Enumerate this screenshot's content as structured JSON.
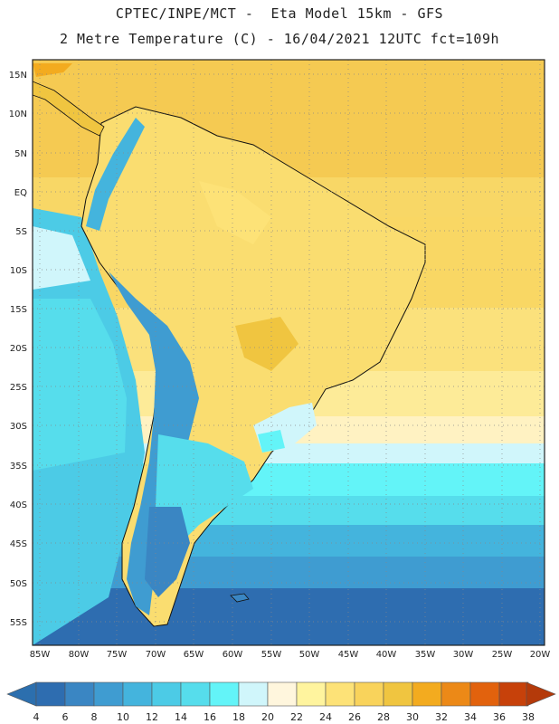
{
  "header": {
    "line1": "CPTEC/INPE/MCT -  Eta Model 15km - GFS",
    "line2": "2 Metre Temperature (C) - 16/04/2021 12UTC fct=109h"
  },
  "axes": {
    "lat_labels": [
      "15N",
      "10N",
      "5N",
      "EQ",
      "5S",
      "10S",
      "15S",
      "20S",
      "25S",
      "30S",
      "35S",
      "40S",
      "45S",
      "50S",
      "55S"
    ],
    "lon_labels": [
      "85W",
      "80W",
      "75W",
      "70W",
      "65W",
      "60W",
      "55W",
      "50W",
      "45W",
      "40W",
      "35W",
      "30W",
      "25W",
      "20W"
    ]
  },
  "colorbar": {
    "labels": [
      "4",
      "6",
      "8",
      "10",
      "12",
      "14",
      "16",
      "18",
      "20",
      "22",
      "24",
      "26",
      "28",
      "30",
      "32",
      "34",
      "36",
      "38"
    ],
    "colors": [
      "#2e6db0",
      "#3a86c3",
      "#3f9cd1",
      "#44b4dd",
      "#4ccbe6",
      "#56ddec",
      "#63f4f8",
      "#d0f6fb",
      "#fff6dd",
      "#fff49e",
      "#fde277",
      "#f9d35b",
      "#f0c540",
      "#f3ab1f",
      "#ec8917",
      "#e2620d",
      "#c7410a"
    ],
    "low_arrow_color": "#2c6fae",
    "high_arrow_color": "#b43a0a"
  }
}
